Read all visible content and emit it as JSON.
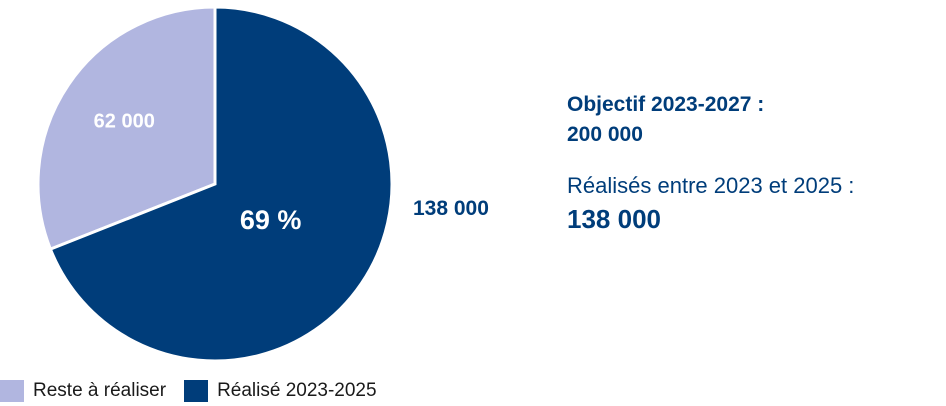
{
  "chart_data": {
    "type": "pie",
    "categories": [
      "Reste à réaliser",
      "Réalisé 2023-2025"
    ],
    "values": [
      62000,
      138000
    ],
    "slice_labels": [
      "62 000",
      "69 %"
    ],
    "outside_label": "138 000",
    "colors": [
      "#b1b6e0",
      "#003d7a"
    ],
    "legend": {
      "position": "bottom-left",
      "entries": [
        "Reste à réaliser",
        "Réalisé 2023-2025"
      ]
    }
  },
  "info": {
    "goal_line1": "Objectif 2023-2027 :",
    "goal_line2": "200 000",
    "done_text": "Réalisés entre 2023 et 2025 :",
    "done_value": "138 000"
  }
}
